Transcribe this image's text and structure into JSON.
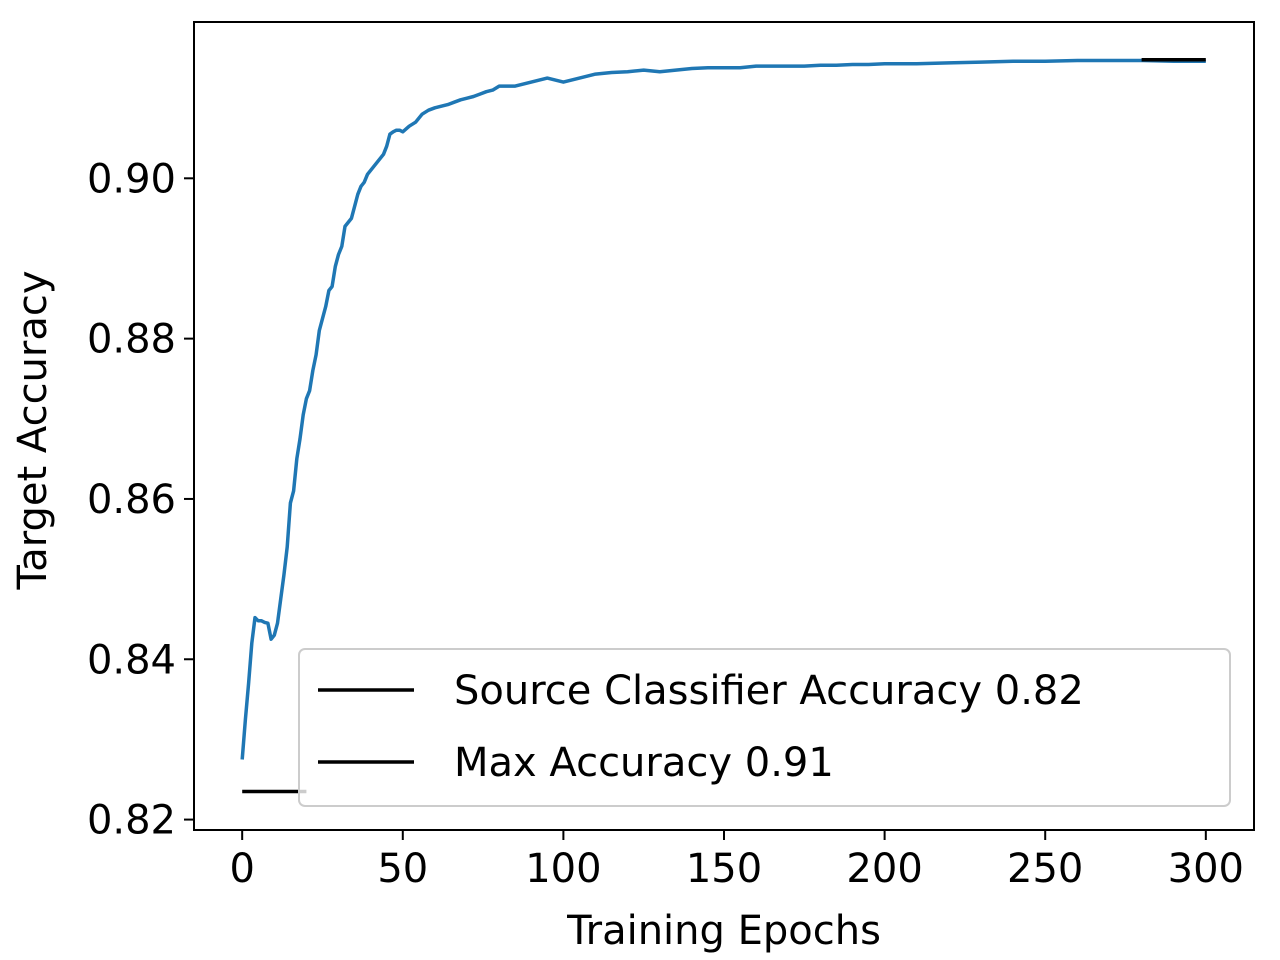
{
  "chart_data": {
    "type": "line",
    "title": "",
    "xlabel": "Training Epochs",
    "ylabel": "Target Accuracy",
    "xlim": [
      -15,
      315
    ],
    "ylim": [
      0.8187,
      0.9195
    ],
    "xticks": [
      0,
      50,
      100,
      150,
      200,
      250,
      300
    ],
    "yticks": [
      0.82,
      0.84,
      0.86,
      0.88,
      0.9
    ],
    "ytick_labels": [
      "0.82",
      "0.84",
      "0.86",
      "0.88",
      "0.90"
    ],
    "grid": false,
    "legend_position": "lower-right",
    "colors": {
      "accuracy": "#1f77b4",
      "reference": "#000000"
    },
    "series": [
      {
        "key": "accuracy",
        "x": [
          0,
          1,
          2,
          3,
          4,
          5,
          6,
          7,
          8,
          9,
          10,
          11,
          12,
          13,
          14,
          15,
          16,
          17,
          18,
          19,
          20,
          21,
          22,
          23,
          24,
          25,
          26,
          27,
          28,
          29,
          30,
          31,
          32,
          33,
          34,
          35,
          36,
          37,
          38,
          39,
          40,
          41,
          42,
          43,
          44,
          45,
          46,
          47,
          48,
          49,
          50,
          52,
          54,
          56,
          58,
          60,
          62,
          64,
          66,
          68,
          70,
          72,
          74,
          76,
          78,
          80,
          85,
          90,
          95,
          100,
          105,
          110,
          115,
          120,
          125,
          130,
          135,
          140,
          145,
          150,
          155,
          160,
          165,
          170,
          175,
          180,
          185,
          190,
          195,
          200,
          210,
          220,
          230,
          240,
          250,
          260,
          270,
          280,
          290,
          300
        ],
        "y": [
          0.8275,
          0.8325,
          0.837,
          0.842,
          0.8452,
          0.8448,
          0.8448,
          0.8446,
          0.8445,
          0.8425,
          0.843,
          0.8445,
          0.8475,
          0.8505,
          0.854,
          0.8595,
          0.861,
          0.865,
          0.8675,
          0.8705,
          0.8725,
          0.8735,
          0.876,
          0.878,
          0.881,
          0.8825,
          0.884,
          0.886,
          0.8865,
          0.889,
          0.8905,
          0.8915,
          0.894,
          0.8945,
          0.895,
          0.8965,
          0.898,
          0.899,
          0.8995,
          0.9005,
          0.901,
          0.9015,
          0.902,
          0.9025,
          0.903,
          0.904,
          0.9055,
          0.9058,
          0.906,
          0.906,
          0.9058,
          0.9065,
          0.907,
          0.908,
          0.9085,
          0.9088,
          0.909,
          0.9092,
          0.9095,
          0.9098,
          0.91,
          0.9102,
          0.9105,
          0.9108,
          0.911,
          0.9115,
          0.9115,
          0.912,
          0.9125,
          0.912,
          0.9125,
          0.913,
          0.9132,
          0.9133,
          0.9135,
          0.9133,
          0.9135,
          0.9137,
          0.9138,
          0.9138,
          0.9138,
          0.914,
          0.914,
          0.914,
          0.914,
          0.9141,
          0.9141,
          0.9142,
          0.9142,
          0.9143,
          0.9143,
          0.9144,
          0.9145,
          0.9146,
          0.9146,
          0.9147,
          0.9147,
          0.9147,
          0.9146,
          0.9146
        ]
      },
      {
        "key": "source",
        "name": "Source Classifier Accuracy 0.82",
        "x": [
          0,
          20
        ],
        "y": [
          0.8235,
          0.8235
        ]
      },
      {
        "key": "max",
        "name": "Max Accuracy 0.91",
        "x": [
          280,
          300
        ],
        "y": [
          0.9148,
          0.9148
        ]
      }
    ]
  }
}
